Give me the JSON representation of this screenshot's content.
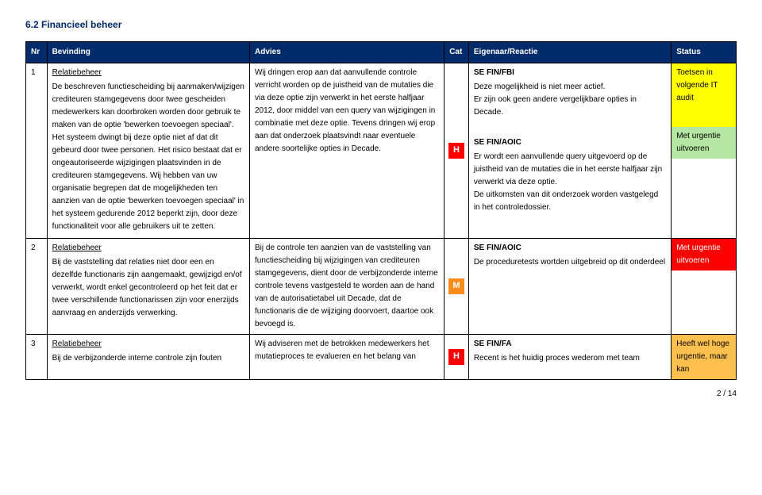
{
  "section_title": "6.2 Financieel beheer",
  "columns": {
    "nr": "Nr",
    "bevinding": "Bevinding",
    "advies": "Advies",
    "cat": "Cat",
    "eigenaar": "Eigenaar/Reactie",
    "status": "Status"
  },
  "rows": [
    {
      "nr": "1",
      "bevinding_title": "Relatiebeheer",
      "bevinding_body": "De beschreven functiescheiding bij aanmaken/wijzigen crediteuren stamgegevens door twee gescheiden medewerkers kan doorbroken worden door gebruik te maken van de optie 'bewerken toevoegen speciaal'. Het systeem dwingt bij deze optie niet af dat dit gebeurd door twee personen. Het risico bestaat dat er ongeautoriseerde wijzigingen plaatsvinden in de crediteuren stamgegevens. Wij hebben van uw organisatie begrepen dat de mogelijkheden ten aanzien van de optie 'bewerken toevoegen speciaal' in het systeem gedurende 2012 beperkt zijn, door deze functionaliteit voor alle gebruikers uit te zetten.",
      "advies_body": "Wij dringen erop aan dat aanvullende controle verricht worden op de juistheid van de mutaties die via deze optie zijn verwerkt in het eerste halfjaar 2012, door middel van een query van wijzigingen in combinatie met deze optie. Tevens dringen wij erop aan dat onderzoek plaatsvindt naar eventuele andere soortelijke opties in Decade.",
      "cat": "H",
      "owner": [
        {
          "title": "SE FIN/FBI",
          "body": "Deze mogelijkheid is niet meer actief.\nEr zijn ook geen andere vergelijkbare opties in Decade."
        },
        {
          "title": "SE FIN/AOIC",
          "body": "Er wordt een aanvullende query uitgevoerd op de juistheid van de mutaties die in het eerste halfjaar zijn verwerkt via deze optie.\nDe uitkomsten van dit onderzoek worden vastgelegd in het controledossier."
        }
      ],
      "status": [
        {
          "text": "Toetsen in volgende IT audit",
          "class": "status-yellow"
        },
        {
          "text": "Met urgentie uitvoeren",
          "class": "status-green"
        }
      ]
    },
    {
      "nr": "2",
      "bevinding_title": "Relatiebeheer",
      "bevinding_body": "Bij de vaststelling dat relaties niet door een en dezelfde functionaris zijn aangemaakt, gewijzigd en/of verwerkt, wordt enkel gecontroleerd op het feit dat er twee verschillende functionarissen zijn voor enerzijds aanvraag en anderzijds verwerking.",
      "advies_body": "Bij de controle ten aanzien van de vaststelling van functiescheiding bij wijzigingen van crediteuren stamgegevens, dient door de verbijzonderde interne controle tevens vastgesteld te worden aan de hand van de autorisatietabel uit Decade, dat de functionaris die de wijziging doorvoert, daartoe ook bevoegd is.",
      "cat": "M",
      "owner": [
        {
          "title": "SE FIN/AOIC",
          "body": "De proceduretests wortden uitgebreid op dit onderdeel"
        }
      ],
      "status": [
        {
          "text": "Met urgentie uitvoeren",
          "class": "status-red"
        }
      ]
    },
    {
      "nr": "3",
      "bevinding_title": "Relatiebeheer",
      "bevinding_body": "Bij de verbijzonderde interne controle zijn fouten",
      "advies_body": "Wij adviseren met de betrokken medewerkers het mutatieproces te evalueren en het belang van",
      "cat": "H",
      "owner": [
        {
          "title": "SE FIN/FA",
          "body": "Recent is het huidig proces wederom met team"
        }
      ],
      "status": [
        {
          "text": "Heeft wel hoge urgentie, maar kan",
          "class": "status-orange"
        }
      ]
    }
  ],
  "page_footer": "2 / 14"
}
